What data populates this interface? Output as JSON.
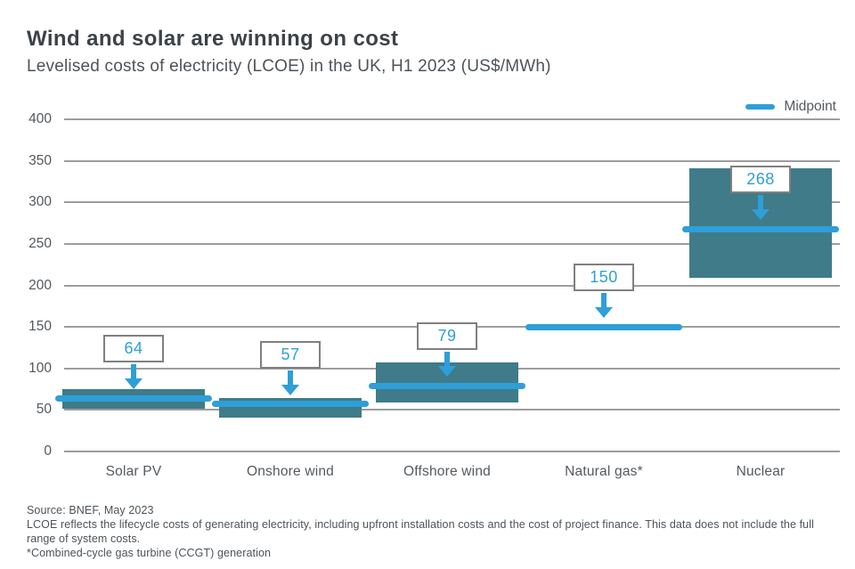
{
  "header": {
    "title": "Wind and solar are winning on cost",
    "subtitle": "Levelised costs of electricity (LCOE) in the UK, H1 2023 (US$/MWh)"
  },
  "legend": {
    "label": "Midpoint"
  },
  "footer": {
    "source": "Source: BNEF, May 2023",
    "note": "LCOE reflects the lifecycle costs of generating electricity, including upfront installation costs and the cost of project finance. This data does not include the full range of system costs.",
    "footnote": "*Combined-cycle gas turbine (CCGT) generation"
  },
  "colors": {
    "range_bar": "#3F7B88",
    "midpoint_blue": "#2E9FD8",
    "gridline": "#9D9D9D",
    "title_text": "#3C4247",
    "body_text": "#4D5358",
    "callout_border": "#808080",
    "callout_bg": "#FFFFFF"
  },
  "chart_data": {
    "type": "bar",
    "title": "Wind and solar are winning on cost",
    "subtitle": "Levelised costs of electricity (LCOE) in the UK, H1 2023 (US$/MWh)",
    "unit": "US$/MWh",
    "categories": [
      "Solar PV",
      "Onshore wind",
      "Offshore wind",
      "Natural gas*",
      "Nuclear"
    ],
    "series": [
      {
        "name": "Midpoint",
        "values": [
          64,
          57,
          79,
          150,
          268
        ]
      },
      {
        "name": "Range low (est.)",
        "values": [
          52,
          41,
          59,
          null,
          209
        ]
      },
      {
        "name": "Range high (est.)",
        "values": [
          75,
          64,
          107,
          null,
          341
        ]
      }
    ],
    "ylim": [
      0,
      400
    ],
    "yticks": [
      0,
      50,
      100,
      150,
      200,
      250,
      300,
      350,
      400
    ],
    "grid": true,
    "legend_position": "top-right",
    "legend_entries": [
      "Midpoint"
    ]
  }
}
